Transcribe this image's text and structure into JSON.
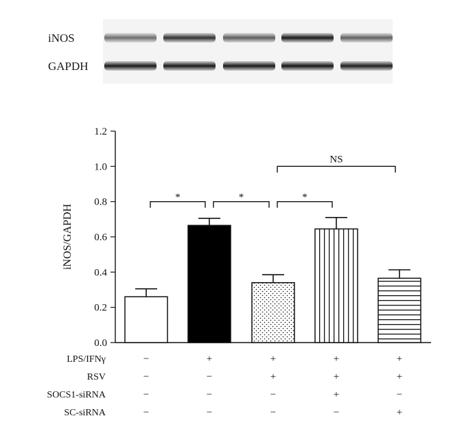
{
  "blot": {
    "rows": [
      {
        "label": "iNOS",
        "band_intensity": [
          0.55,
          0.8,
          0.62,
          0.9,
          0.6
        ]
      },
      {
        "label": "GAPDH",
        "band_intensity": [
          0.9,
          0.9,
          0.9,
          0.92,
          0.88
        ]
      }
    ]
  },
  "chart_data": {
    "type": "bar",
    "ylabel": "iNOS/GAPDH",
    "ylim": [
      0,
      1.2
    ],
    "yticks": [
      "0.0",
      "0.2",
      "0.4",
      "0.6",
      "0.8",
      "1.0",
      "1.2"
    ],
    "values": [
      0.26,
      0.665,
      0.34,
      0.645,
      0.365
    ],
    "errors": [
      0.045,
      0.04,
      0.045,
      0.065,
      0.048
    ],
    "patterns": [
      "none",
      "solid",
      "dots",
      "vertical-lines",
      "horizontal-lines"
    ],
    "conditions": [
      {
        "label": "LPS/IFNγ",
        "marks": [
          "−",
          "+",
          "+",
          "+",
          "+"
        ]
      },
      {
        "label": "RSV",
        "marks": [
          "−",
          "−",
          "+",
          "+",
          "+"
        ]
      },
      {
        "label": "SOCS1-siRNA",
        "marks": [
          "−",
          "−",
          "−",
          "+",
          "−"
        ]
      },
      {
        "label": "SC-siRNA",
        "marks": [
          "−",
          "−",
          "−",
          "−",
          "+"
        ]
      }
    ],
    "significance": [
      {
        "from": 0,
        "to": 1,
        "level": 0.8,
        "label": "*"
      },
      {
        "from": 1,
        "to": 2,
        "level": 0.8,
        "label": "*"
      },
      {
        "from": 2,
        "to": 3,
        "level": 0.8,
        "label": "*"
      },
      {
        "from": 2,
        "to": 4,
        "level": 1.0,
        "label": "NS"
      }
    ]
  }
}
